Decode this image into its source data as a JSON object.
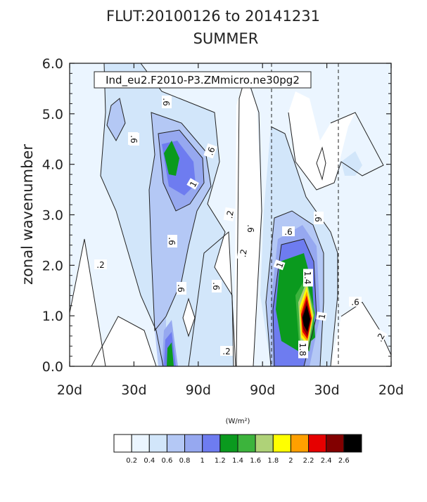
{
  "chart_data": {
    "type": "heatmap",
    "title": "FLUT:20100126 to 20141231",
    "subtitle": "SUMMER",
    "annotation": "Ind_eu2.F2010-P3.ZMmicro.ne30pg2",
    "ylabel": "zonal wavenumber",
    "ylim": [
      0,
      6
    ],
    "yticks": [
      "0.0",
      "1.0",
      "2.0",
      "3.0",
      "4.0",
      "5.0",
      "6.0"
    ],
    "xticks": [
      "20d",
      "30d",
      "90d",
      "90d",
      "30d",
      "20d"
    ],
    "colorbar_unit": "(W/m²)",
    "levels": [
      "0.2",
      "0.4",
      "0.6",
      "0.8",
      "1",
      "1.2",
      "1.4",
      "1.6",
      "1.8",
      "2",
      "2.2",
      "2.4",
      "2.6"
    ],
    "colors": [
      "#ffffff",
      "#ebf5ff",
      "#d2e6fa",
      "#b4c8f5",
      "#96a8f0",
      "#6e7cf0",
      "#0a9a1e",
      "#3cb43c",
      "#afd278",
      "#ffff00",
      "#ffa000",
      "#e60000",
      "#820000",
      "#000000"
    ],
    "contour_labels": [
      ".2",
      ".2",
      ".2",
      ".2",
      ".2",
      ".6",
      ".6",
      ".6",
      ".6",
      ".6",
      ".6",
      ".6",
      ".6",
      ".6",
      ".6",
      ".6",
      ".6",
      "1",
      "1",
      "1",
      "1.4",
      "1.8"
    ],
    "grid": false
  }
}
